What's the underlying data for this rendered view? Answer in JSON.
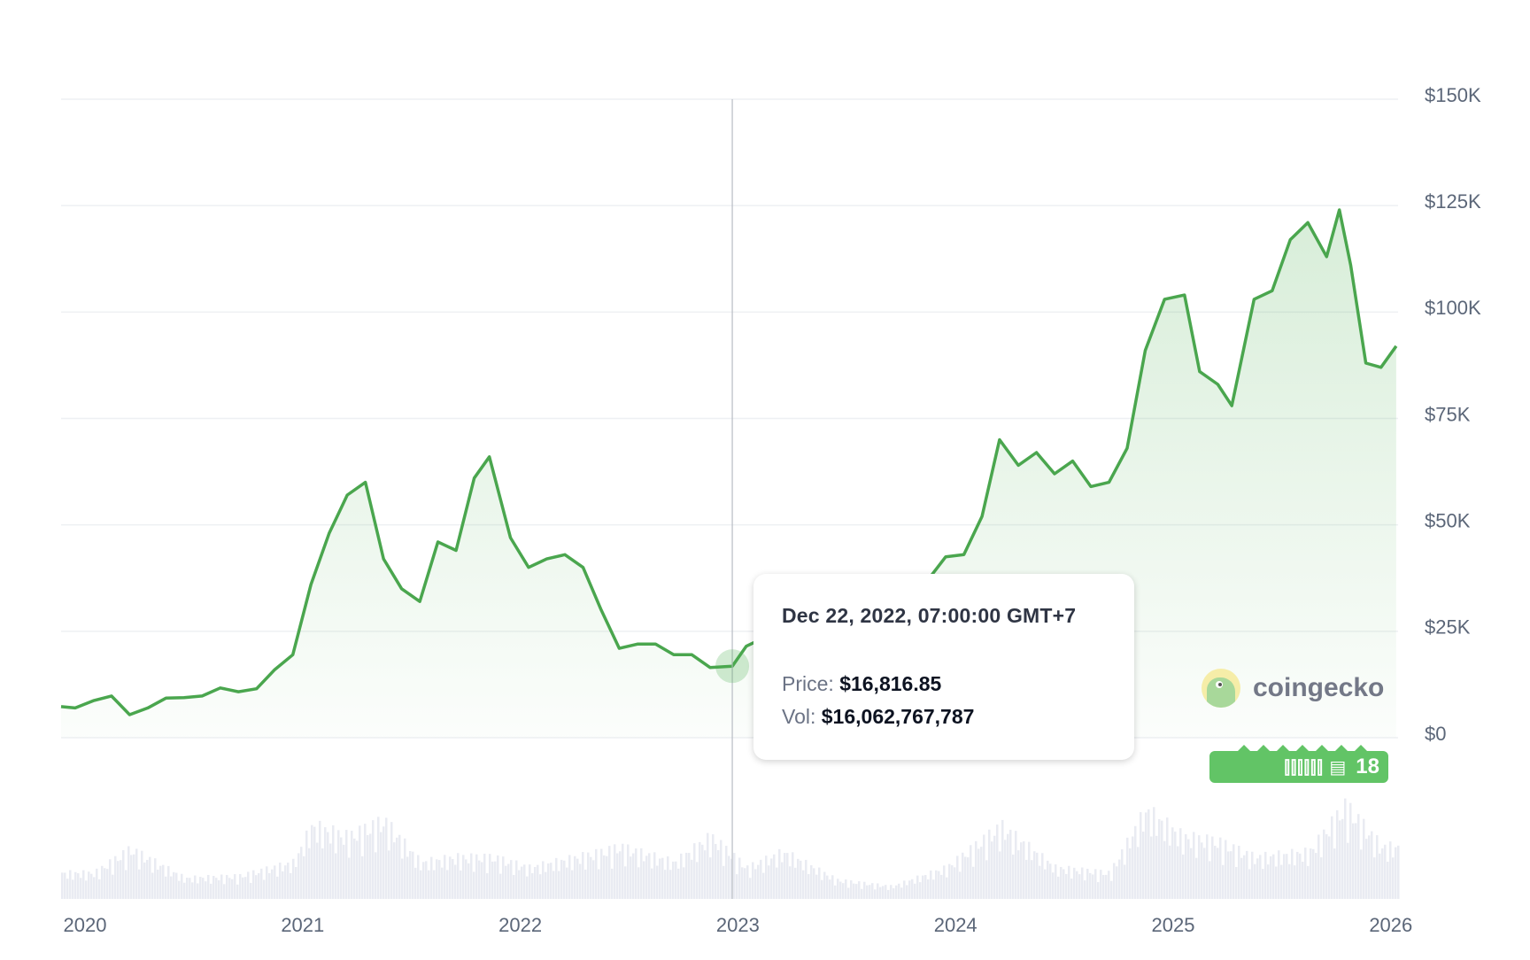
{
  "chart_data": {
    "type": "line",
    "title": "",
    "xlabel": "",
    "ylabel": "",
    "x_ticks": [
      "2020",
      "2021",
      "2022",
      "2023",
      "2024",
      "2025",
      "2026"
    ],
    "y_ticks": [
      "$0",
      "$25K",
      "$50K",
      "$75K",
      "$100K",
      "$125K",
      "$150K"
    ],
    "ylim": [
      0,
      150000
    ],
    "grid": true,
    "line_color": "#4aa64e",
    "fill_color": "#4caf50",
    "volume_color": "#e9ebf2",
    "series": [
      {
        "kind": "price",
        "dates": [
          "2019-11-20",
          "2019-12-15",
          "2020-01-15",
          "2020-02-15",
          "2020-03-15",
          "2020-04-15",
          "2020-05-15",
          "2020-06-15",
          "2020-07-15",
          "2020-08-15",
          "2020-09-15",
          "2020-10-15",
          "2020-11-15",
          "2020-12-15",
          "2021-01-15",
          "2021-02-15",
          "2021-03-15",
          "2021-04-15",
          "2021-05-15",
          "2021-06-15",
          "2021-07-15",
          "2021-08-15",
          "2021-09-15",
          "2021-10-15",
          "2021-11-10",
          "2021-12-15",
          "2022-01-15",
          "2022-02-15",
          "2022-03-15",
          "2022-04-15",
          "2022-05-15",
          "2022-06-15",
          "2022-07-15",
          "2022-08-15",
          "2022-09-15",
          "2022-10-15",
          "2022-11-15",
          "2022-12-22",
          "2023-01-15",
          "2023-02-15",
          "2023-03-15",
          "2023-04-15",
          "2023-05-15",
          "2023-06-15",
          "2023-07-15",
          "2023-08-15",
          "2023-09-15",
          "2023-10-15",
          "2023-11-15",
          "2023-12-15",
          "2024-01-15",
          "2024-02-15",
          "2024-03-14",
          "2024-04-15",
          "2024-05-15",
          "2024-06-15",
          "2024-07-15",
          "2024-08-15",
          "2024-09-15",
          "2024-10-15",
          "2024-11-15",
          "2024-12-17",
          "2025-01-20",
          "2025-02-15",
          "2025-03-15",
          "2025-04-08",
          "2025-05-15",
          "2025-06-15",
          "2025-07-15",
          "2025-08-14",
          "2025-09-15",
          "2025-10-06",
          "2025-10-25",
          "2025-11-20",
          "2025-12-15",
          "2026-01-10"
        ],
        "values": [
          7300,
          7000,
          8700,
          9800,
          5400,
          7000,
          9300,
          9400,
          9800,
          11700,
          10800,
          11500,
          16000,
          19500,
          36000,
          48000,
          57000,
          60000,
          42000,
          35000,
          32000,
          46000,
          44000,
          61000,
          66000,
          47000,
          40000,
          42000,
          43000,
          40000,
          30000,
          21000,
          22000,
          22000,
          19500,
          19500,
          16500,
          16817,
          21500,
          23500,
          26000,
          29000,
          27000,
          28000,
          29500,
          26500,
          26500,
          28000,
          37000,
          42500,
          43000,
          52000,
          70000,
          64000,
          67000,
          62000,
          65000,
          59000,
          60000,
          68000,
          91000,
          103000,
          104000,
          86000,
          83000,
          78000,
          103000,
          105000,
          117000,
          121000,
          113000,
          124000,
          111000,
          88000,
          87000,
          92000
        ]
      },
      {
        "kind": "volume",
        "dates": [
          "2020-01",
          "2020-03",
          "2020-06",
          "2020-09",
          "2020-12",
          "2021-01",
          "2021-03",
          "2021-05",
          "2021-07",
          "2021-09",
          "2021-11",
          "2022-01",
          "2022-05",
          "2022-06",
          "2022-09",
          "2022-11",
          "2023-01",
          "2023-03",
          "2023-06",
          "2023-09",
          "2023-12",
          "2024-03",
          "2024-06",
          "2024-09",
          "2024-11",
          "2025-01",
          "2025-03",
          "2025-05",
          "2025-08",
          "2025-10",
          "2025-12"
        ],
        "values": [
          25,
          48,
          20,
          22,
          35,
          70,
          60,
          75,
          35,
          40,
          40,
          30,
          45,
          50,
          35,
          60,
          30,
          45,
          18,
          12,
          30,
          70,
          30,
          25,
          85,
          60,
          55,
          40,
          45,
          90,
          50
        ]
      }
    ],
    "hover": {
      "date": "2022-12-22",
      "price": 16816.85
    }
  },
  "tooltip": {
    "date": "Dec 22, 2022, 07:00:00 GMT+7",
    "price_label": "Price:",
    "price_value": "$16,816.85",
    "vol_label": "Vol:",
    "vol_value": "$16,062,767,787"
  },
  "watermark": {
    "text": "coingecko"
  },
  "news_badge": {
    "icon": "newspaper-icon",
    "count": "18",
    "icons": "⫿⫿⫿⫿⫿⫿ ▤"
  }
}
